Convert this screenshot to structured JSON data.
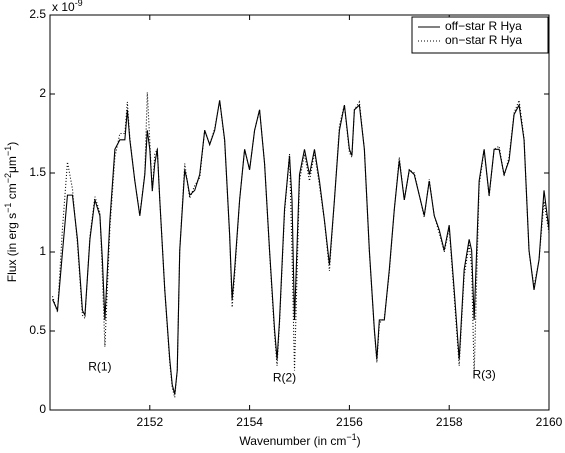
{
  "chart_data": {
    "type": "line",
    "multiplier": [
      "x 10",
      "-9"
    ],
    "xlabel": [
      "Wavenumber (in cm",
      "−1",
      ")"
    ],
    "ylabel": [
      "Flux (in erg s",
      "−1",
      " cm",
      "−2",
      "μm",
      "−1",
      ")"
    ],
    "xlim": [
      2150,
      2160
    ],
    "xticks": [
      2152,
      2154,
      2156,
      2158,
      2160
    ],
    "ylim": [
      0,
      2.5
    ],
    "yticks": [
      0,
      0.5,
      1,
      1.5,
      2,
      2.5
    ],
    "legend": "upper right",
    "x": [
      2150.05,
      2150.15,
      2150.25,
      2150.35,
      2150.45,
      2150.55,
      2150.65,
      2150.7,
      2150.8,
      2150.9,
      2151.0,
      2151.05,
      2151.1,
      2151.2,
      2151.3,
      2151.4,
      2151.5,
      2151.55,
      2151.6,
      2151.7,
      2151.8,
      2151.9,
      2151.95,
      2152.0,
      2152.05,
      2152.1,
      2152.15,
      2152.2,
      2152.3,
      2152.4,
      2152.45,
      2152.5,
      2152.55,
      2152.6,
      2152.7,
      2152.75,
      2152.8,
      2152.9,
      2153.0,
      2153.1,
      2153.2,
      2153.3,
      2153.4,
      2153.5,
      2153.6,
      2153.65,
      2153.7,
      2153.8,
      2153.9,
      2154.0,
      2154.1,
      2154.2,
      2154.3,
      2154.4,
      2154.5,
      2154.55,
      2154.6,
      2154.7,
      2154.8,
      2154.85,
      2154.9,
      2155.0,
      2155.1,
      2155.2,
      2155.3,
      2155.4,
      2155.5,
      2155.6,
      2155.7,
      2155.8,
      2155.9,
      2156.0,
      2156.05,
      2156.1,
      2156.2,
      2156.3,
      2156.4,
      2156.5,
      2156.55,
      2156.6,
      2156.7,
      2156.8,
      2156.9,
      2157.0,
      2157.1,
      2157.2,
      2157.3,
      2157.4,
      2157.5,
      2157.6,
      2157.7,
      2157.8,
      2157.9,
      2158.0,
      2158.1,
      2158.2,
      2158.3,
      2158.4,
      2158.45,
      2158.5,
      2158.6,
      2158.7,
      2158.8,
      2158.9,
      2159.0,
      2159.1,
      2159.2,
      2159.3,
      2159.4,
      2159.5,
      2159.6,
      2159.7,
      2159.8,
      2159.9,
      2160.0
    ],
    "series": [
      {
        "name": "off−star R Hya",
        "color": "#000000",
        "style": "solid",
        "values": [
          0.7,
          0.63,
          1.0,
          1.36,
          1.36,
          1.08,
          0.63,
          0.6,
          1.08,
          1.33,
          1.23,
          0.95,
          0.57,
          1.2,
          1.65,
          1.71,
          1.71,
          1.9,
          1.71,
          1.45,
          1.23,
          1.49,
          1.77,
          1.65,
          1.39,
          1.56,
          1.65,
          1.33,
          0.76,
          0.32,
          0.16,
          0.1,
          0.25,
          1.01,
          1.52,
          1.45,
          1.36,
          1.39,
          1.49,
          1.77,
          1.68,
          1.77,
          1.96,
          1.71,
          1.11,
          0.7,
          0.89,
          1.33,
          1.65,
          1.52,
          1.77,
          1.9,
          1.56,
          1.01,
          0.51,
          0.32,
          0.57,
          1.27,
          1.61,
          1.33,
          0.57,
          1.49,
          1.65,
          1.49,
          1.65,
          1.45,
          1.2,
          0.92,
          1.33,
          1.77,
          1.93,
          1.65,
          1.61,
          1.9,
          1.93,
          1.65,
          1.01,
          0.51,
          0.32,
          0.57,
          0.57,
          0.89,
          1.27,
          1.58,
          1.33,
          1.52,
          1.49,
          1.36,
          1.23,
          1.45,
          1.23,
          1.14,
          1.01,
          1.17,
          0.76,
          0.32,
          0.89,
          1.08,
          1.01,
          0.57,
          1.45,
          1.65,
          1.36,
          1.65,
          1.65,
          1.49,
          1.58,
          1.87,
          1.93,
          1.71,
          1.01,
          0.76,
          0.95,
          1.39,
          1.14
        ]
      },
      {
        "name": "on−star R Hya",
        "color": "#000000",
        "style": "dotted",
        "values": [
          0.72,
          0.62,
          1.15,
          1.57,
          1.4,
          1.05,
          0.6,
          0.58,
          1.1,
          1.35,
          1.25,
          0.85,
          0.4,
          1.15,
          1.6,
          1.75,
          1.75,
          1.95,
          1.72,
          1.45,
          1.23,
          1.5,
          2.01,
          1.7,
          1.38,
          1.62,
          1.65,
          1.33,
          0.76,
          0.3,
          0.14,
          0.08,
          0.25,
          1.01,
          1.56,
          1.45,
          1.34,
          1.42,
          1.47,
          1.77,
          1.68,
          1.78,
          1.96,
          1.7,
          1.1,
          0.65,
          0.85,
          1.33,
          1.65,
          1.52,
          1.77,
          1.9,
          1.56,
          1.0,
          0.48,
          0.28,
          0.55,
          1.25,
          1.62,
          1.0,
          0.25,
          1.45,
          1.62,
          1.45,
          1.63,
          1.42,
          1.2,
          0.88,
          1.33,
          1.8,
          1.93,
          1.63,
          1.6,
          1.9,
          1.95,
          1.65,
          1.0,
          0.5,
          0.3,
          0.55,
          0.58,
          0.87,
          1.27,
          1.6,
          1.33,
          1.52,
          1.5,
          1.36,
          1.22,
          1.46,
          1.23,
          1.12,
          1.0,
          1.15,
          0.72,
          0.28,
          0.85,
          1.05,
          0.9,
          0.22,
          1.42,
          1.65,
          1.35,
          1.65,
          1.67,
          1.48,
          1.6,
          1.88,
          1.96,
          1.72,
          1.0,
          0.78,
          0.95,
          1.32,
          1.12
        ]
      }
    ],
    "annotations": [
      {
        "text": "R(1)",
        "x": 2151.0,
        "y": 0.27
      },
      {
        "text": "R(2)",
        "x": 2154.7,
        "y": 0.2
      },
      {
        "text": "R(3)",
        "x": 2158.7,
        "y": 0.22
      }
    ]
  }
}
